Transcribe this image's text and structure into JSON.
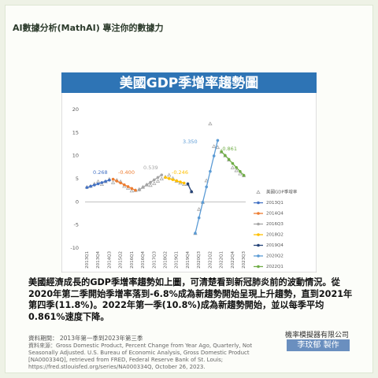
{
  "header": {
    "title": "AI數據分析(MathAI) 專注你的數據力"
  },
  "chart_data": {
    "type": "line",
    "title": "美國GDP季增率趨勢圖",
    "categories": [
      "2013Q1",
      null,
      null,
      "2013Q4",
      null,
      null,
      "2014Q3",
      null,
      null,
      "2015Q2",
      null,
      null,
      "2016Q1",
      null,
      null,
      "2016Q4",
      null,
      null,
      "2017Q3",
      null,
      null,
      "2018Q2",
      null,
      null,
      "2019Q1",
      null,
      null,
      "2019Q4",
      null,
      null,
      "2020Q3",
      null,
      null,
      "2021Q2",
      null,
      null,
      "2022Q1",
      null,
      null,
      "2022Q4",
      null,
      null,
      "2023Q3"
    ],
    "series": [
      {
        "name": "美國GDP季增率",
        "color": "#a6a6a6",
        "marker": "triangle",
        "values": [
          3.2,
          3.4,
          3.9,
          4.4,
          3.8,
          4.4,
          4.9,
          4.2,
          4.7,
          4.4,
          3.4,
          3.0,
          2.4,
          2.5,
          2.7,
          3.2,
          3.7,
          3.6,
          4.0,
          4.5,
          5.0,
          5.4,
          5.8,
          5.1,
          4.5,
          4.1,
          3.8,
          3.8,
          2.2,
          -6.8,
          -1.6,
          -0.1,
          4.6,
          16.9,
          12.0,
          11.8,
          10.8,
          10.0,
          9.1,
          7.4,
          6.8,
          6.1,
          5.7
        ]
      },
      {
        "name": "2013Q1",
        "color": "#4472c4",
        "marker": "line",
        "values": [
          3.1,
          3.37,
          3.64,
          3.9,
          4.17,
          4.44,
          4.71,
          null,
          null,
          null,
          null,
          null,
          null,
          null,
          null,
          null,
          null,
          null,
          null,
          null,
          null,
          null,
          null,
          null,
          null,
          null,
          null,
          null,
          null,
          null,
          null,
          null,
          null,
          null,
          null,
          null,
          null,
          null,
          null,
          null,
          null,
          null,
          null
        ]
      },
      {
        "name": "2014Q4",
        "color": "#ed7d31",
        "marker": "line",
        "values": [
          null,
          null,
          null,
          null,
          null,
          null,
          null,
          4.9,
          4.5,
          4.1,
          3.7,
          3.3,
          2.9,
          2.5,
          null,
          null,
          null,
          null,
          null,
          null,
          null,
          null,
          null,
          null,
          null,
          null,
          null,
          null,
          null,
          null,
          null,
          null,
          null,
          null,
          null,
          null,
          null,
          null,
          null,
          null,
          null,
          null,
          null
        ]
      },
      {
        "name": "2016Q3",
        "color": "#a5a5a5",
        "marker": "line",
        "values": [
          null,
          null,
          null,
          null,
          null,
          null,
          null,
          null,
          null,
          null,
          null,
          null,
          null,
          null,
          2.6,
          3.14,
          3.68,
          4.22,
          4.76,
          5.3,
          5.83,
          null,
          null,
          null,
          null,
          null,
          null,
          null,
          null,
          null,
          null,
          null,
          null,
          null,
          null,
          null,
          null,
          null,
          null,
          null,
          null,
          null,
          null
        ]
      },
      {
        "name": "2018Q2",
        "color": "#ffc000",
        "marker": "line",
        "values": [
          null,
          null,
          null,
          null,
          null,
          null,
          null,
          null,
          null,
          null,
          null,
          null,
          null,
          null,
          null,
          null,
          null,
          null,
          null,
          null,
          null,
          5.3,
          5.05,
          4.81,
          4.56,
          4.32,
          4.07,
          null,
          null,
          null,
          null,
          null,
          null,
          null,
          null,
          null,
          null,
          null,
          null,
          null,
          null,
          null,
          null
        ]
      },
      {
        "name": "2019Q4",
        "color": "#264478",
        "marker": "line",
        "values": [
          null,
          null,
          null,
          null,
          null,
          null,
          null,
          null,
          null,
          null,
          null,
          null,
          null,
          null,
          null,
          null,
          null,
          null,
          null,
          null,
          null,
          null,
          null,
          null,
          null,
          null,
          null,
          3.9,
          2.2,
          null,
          null,
          null,
          null,
          null,
          null,
          null,
          null,
          null,
          null,
          null,
          null,
          null,
          null
        ]
      },
      {
        "name": "2020Q2",
        "color": "#5b9bd5",
        "marker": "line",
        "values": [
          null,
          null,
          null,
          null,
          null,
          null,
          null,
          null,
          null,
          null,
          null,
          null,
          null,
          null,
          null,
          null,
          null,
          null,
          null,
          null,
          null,
          null,
          null,
          null,
          null,
          null,
          null,
          null,
          null,
          -6.8,
          -3.45,
          -0.1,
          3.25,
          6.6,
          9.95,
          13.3,
          null,
          null,
          null,
          null,
          null,
          null,
          null
        ]
      },
      {
        "name": "2022Q1",
        "color": "#70ad47",
        "marker": "line",
        "values": [
          null,
          null,
          null,
          null,
          null,
          null,
          null,
          null,
          null,
          null,
          null,
          null,
          null,
          null,
          null,
          null,
          null,
          null,
          null,
          null,
          null,
          null,
          null,
          null,
          null,
          null,
          null,
          null,
          null,
          null,
          null,
          null,
          null,
          null,
          null,
          null,
          10.9,
          10.04,
          9.18,
          8.32,
          7.45,
          6.59,
          5.73
        ]
      }
    ],
    "annotations": [
      {
        "text": "0.268",
        "color": "#4472c4"
      },
      {
        "text": "-0.400",
        "color": "#ed7d31"
      },
      {
        "text": "0.539",
        "color": "#a5a5a5"
      },
      {
        "text": "-0.246",
        "color": "#ffc000"
      },
      {
        "text": "3.350",
        "color": "#5b9bd5"
      },
      {
        "text": "-0.861",
        "color": "#70ad47"
      }
    ],
    "ylim": [
      -10,
      20
    ],
    "yticks": [
      -10,
      -5,
      0,
      5,
      10,
      15,
      20
    ],
    "grid": false,
    "legend": "right"
  },
  "description": "美國經濟成長的GDP季增率趨勢如上圖，可清楚看到新冠肺炎前的波動情況。從2020年第二季開始季增率落到-6.8%成為新趨勢開始呈現上升趨勢，直到2021年第四季(11.8%)。2022年第一季(10.8%)成為新趨勢開始，並以每季平均0.861%速度下降。",
  "source": {
    "period": "資料期間： 2013年第一季到2023年第三季",
    "text": "資料來源：Gross Domestic Product, Percent Change from Year Ago, Quarterly, Not Seasonally Adjusted. U.S. Bureau of Economic Analysis, Gross Domestic Product [NA000334Q], retrieved from FRED, Federal Reserve Bank of St. Louis; https://fred.stlouisfed.org/series/NA000334Q, October 26, 2023."
  },
  "footer": {
    "company": "機率模擬器有限公司",
    "author": "李玟郁 製作"
  }
}
